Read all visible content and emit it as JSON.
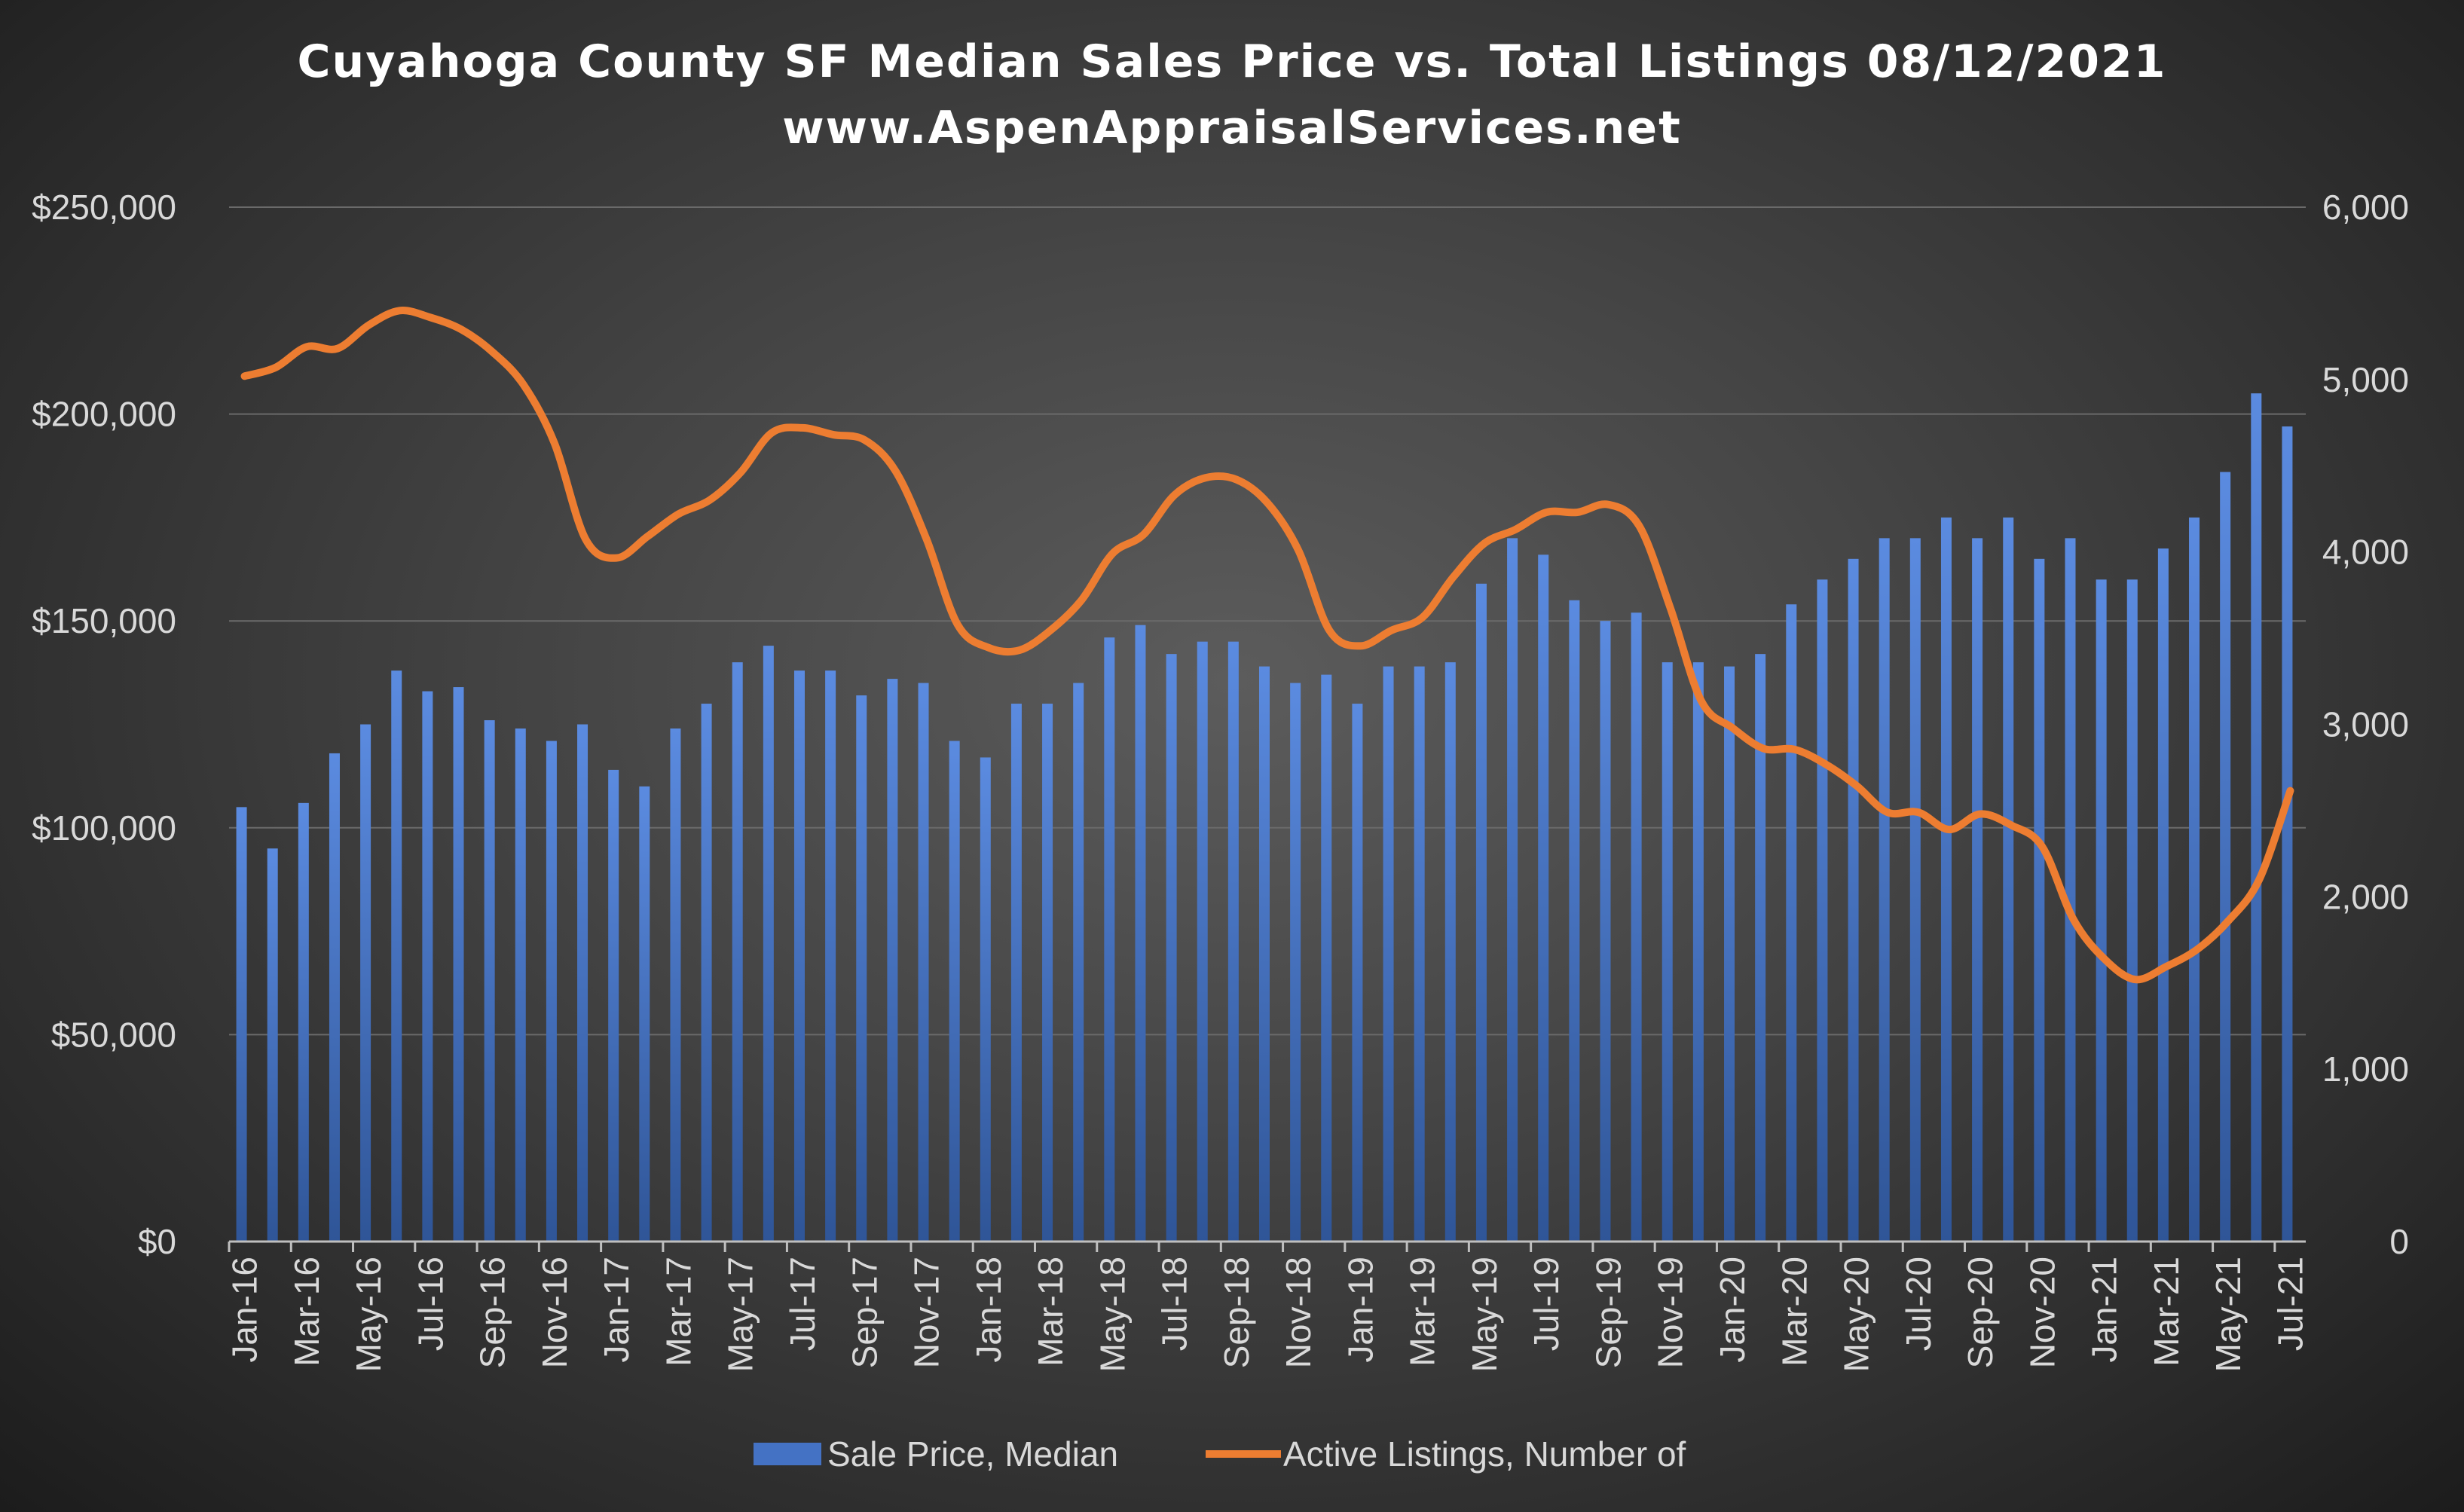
{
  "chart_data": {
    "type": "bar+line",
    "title": "Cuyahoga County SF Median Sales Price vs. Total Listings 08/12/2021",
    "subtitle": "www.AspenAppraisalServices.net",
    "categories": [
      "Jan-16",
      "Feb-16",
      "Mar-16",
      "Apr-16",
      "May-16",
      "Jun-16",
      "Jul-16",
      "Aug-16",
      "Sep-16",
      "Oct-16",
      "Nov-16",
      "Dec-16",
      "Jan-17",
      "Feb-17",
      "Mar-17",
      "Apr-17",
      "May-17",
      "Jun-17",
      "Jul-17",
      "Aug-17",
      "Sep-17",
      "Oct-17",
      "Nov-17",
      "Dec-17",
      "Jan-18",
      "Feb-18",
      "Mar-18",
      "Apr-18",
      "May-18",
      "Jun-18",
      "Jul-18",
      "Aug-18",
      "Sep-18",
      "Oct-18",
      "Nov-18",
      "Dec-18",
      "Jan-19",
      "Feb-19",
      "Mar-19",
      "Apr-19",
      "May-19",
      "Jun-19",
      "Jul-19",
      "Aug-19",
      "Sep-19",
      "Oct-19",
      "Nov-19",
      "Dec-19",
      "Jan-20",
      "Feb-20",
      "Mar-20",
      "Apr-20",
      "May-20",
      "Jun-20",
      "Jul-20",
      "Aug-20",
      "Sep-20",
      "Oct-20",
      "Nov-20",
      "Dec-20",
      "Jan-21",
      "Feb-21",
      "Mar-21",
      "Apr-21",
      "May-21",
      "Jun-21",
      "Jul-21"
    ],
    "series": [
      {
        "name": "Sale Price, Median",
        "type": "bar",
        "axis": "left",
        "color": "#4472c4",
        "values": [
          105000,
          95000,
          106000,
          118000,
          125000,
          138000,
          133000,
          134000,
          126000,
          124000,
          121000,
          125000,
          114000,
          110000,
          124000,
          130000,
          140000,
          144000,
          138000,
          138000,
          132000,
          136000,
          135000,
          121000,
          117000,
          130000,
          130000,
          135000,
          146000,
          149000,
          142000,
          145000,
          145000,
          139000,
          135000,
          137000,
          130000,
          139000,
          139000,
          140000,
          159000,
          170000,
          166000,
          155000,
          150000,
          152000,
          140000,
          140000,
          139000,
          142000,
          154000,
          160000,
          165000,
          170000,
          170000,
          175000,
          170000,
          175000,
          165000,
          170000,
          160000,
          160000,
          167500,
          175000,
          186000,
          205000,
          197000
        ]
      },
      {
        "name": "Active Listings, Number of",
        "type": "line",
        "axis": "right",
        "color": "#ed7d31",
        "values": [
          5020,
          5070,
          5190,
          5180,
          5315,
          5400,
          5360,
          5290,
          5160,
          4970,
          4630,
          4075,
          3965,
          4090,
          4220,
          4300,
          4460,
          4690,
          4720,
          4680,
          4650,
          4470,
          4075,
          3580,
          3445,
          3430,
          3545,
          3720,
          3990,
          4100,
          4330,
          4430,
          4420,
          4285,
          4010,
          3545,
          3455,
          3545,
          3620,
          3855,
          4050,
          4130,
          4230,
          4230,
          4275,
          4150,
          3675,
          3135,
          2980,
          2860,
          2855,
          2770,
          2645,
          2490,
          2490,
          2390,
          2480,
          2415,
          2290,
          1870,
          1640,
          1520,
          1595,
          1695,
          1860,
          2100,
          2615
        ]
      }
    ],
    "ylim_left": [
      0,
      250000
    ],
    "yticks_left": [
      "$0",
      "$50,000",
      "$100,000",
      "$150,000",
      "$200,000",
      "$250,000"
    ],
    "ylim_right": [
      0,
      6000
    ],
    "yticks_right": [
      "0",
      "1,000",
      "2,000",
      "3,000",
      "4,000",
      "5,000",
      "6,000"
    ],
    "grid": true,
    "legend": "bottom"
  }
}
